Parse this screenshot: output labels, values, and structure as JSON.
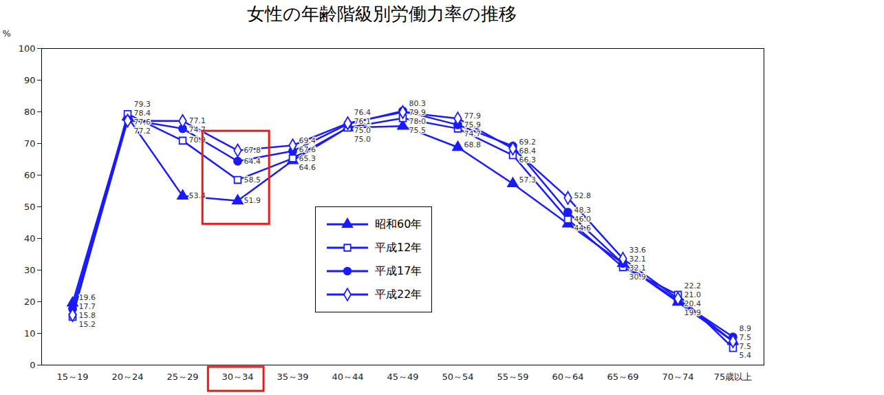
{
  "chart_data": {
    "type": "line",
    "title": "女性の年齢階級別労働力率の推移",
    "y_label": "%",
    "categories": [
      "15～19",
      "20～24",
      "25～29",
      "30～34",
      "35～39",
      "40～44",
      "45～49",
      "50～54",
      "55～59",
      "60～64",
      "65～69",
      "70～74",
      "75歳以上"
    ],
    "series": [
      {
        "name": "昭和60年",
        "color": "#1a1aff",
        "marker": "triangle",
        "values": [
          19.6,
          78.4,
          53.4,
          51.9,
          64.6,
          75.0,
          75.5,
          68.8,
          57.3,
          44.6,
          32.1,
          19.9,
          7.5
        ],
        "value_labels": [
          "19.6",
          "78.4",
          "53.4",
          "51.9",
          "64.6",
          "75.0",
          "75.5",
          "68.8",
          "57.3",
          "44.6",
          "32.1",
          "19.9",
          "7.5"
        ]
      },
      {
        "name": "平成12年",
        "color": "#1a1aff",
        "marker": "square-open",
        "values": [
          15.2,
          79.3,
          70.9,
          58.5,
          65.3,
          75.0,
          78.0,
          74.7,
          66.3,
          46.0,
          30.9,
          22.2,
          5.4
        ],
        "value_labels": [
          "15.2",
          "79.3",
          "70.9",
          "58.5",
          "65.3",
          "75.0",
          "78.0",
          "74.7",
          "66.3",
          "46.0",
          "30.9",
          "22.2",
          "5.4"
        ]
      },
      {
        "name": "平成17年",
        "color": "#1a1aff",
        "marker": "circle",
        "values": [
          17.7,
          77.6,
          74.7,
          64.4,
          67.6,
          76.1,
          80.3,
          75.9,
          69.2,
          48.3,
          32.1,
          20.4,
          8.9
        ],
        "value_labels": [
          "17.7",
          "77.6",
          "74.7",
          "64.4",
          "67.6",
          "76.1",
          "80.3",
          "75.9",
          "69.2",
          "48.3",
          "32.1",
          "20.4",
          "8.9"
        ]
      },
      {
        "name": "平成22年",
        "color": "#1a1aff",
        "marker": "diamond-open",
        "values": [
          15.8,
          77.2,
          77.1,
          67.8,
          69.4,
          76.4,
          79.9,
          77.9,
          68.4,
          52.8,
          33.6,
          21.0,
          7.5
        ],
        "value_labels": [
          "15.8",
          "77.2",
          "77.1",
          "67.8",
          "69.4",
          "76.4",
          "79.9",
          "77.9",
          "68.4",
          "52.8",
          "33.6",
          "21.0",
          "7.5"
        ]
      }
    ],
    "ylim": [
      0,
      100
    ],
    "yticks": [
      0,
      10,
      20,
      30,
      40,
      50,
      60,
      70,
      80,
      90,
      100
    ],
    "grid": false,
    "data_labels": true,
    "legend": "bottom"
  }
}
